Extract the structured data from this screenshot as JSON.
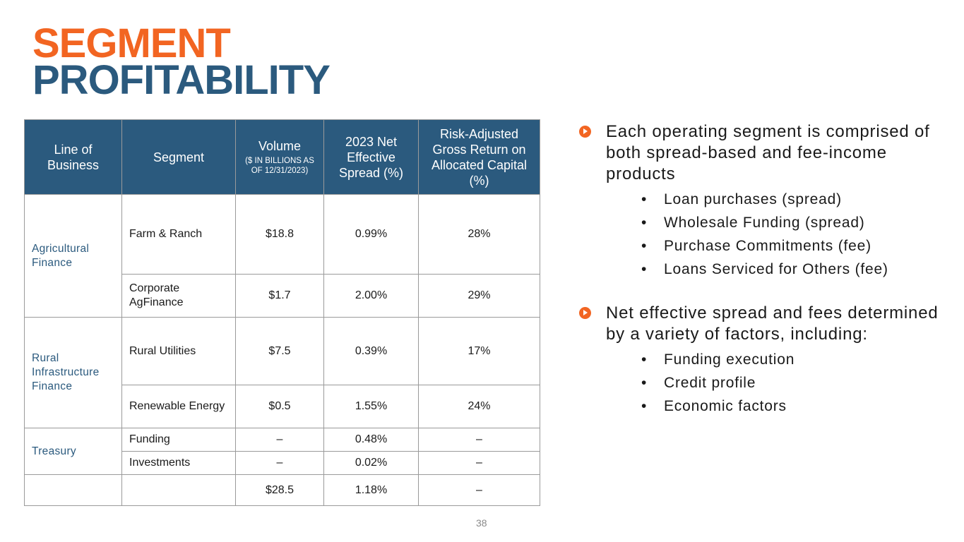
{
  "title": {
    "line1": "SEGMENT",
    "line2": "PROFITABILITY"
  },
  "table": {
    "headers": {
      "line_of_business": "Line of Business",
      "segment": "Segment",
      "volume": "Volume",
      "volume_sub": "($ IN BILLIONS AS OF 12/31/2023)",
      "spread": "2023 Net Effective Spread (%)",
      "return": "Risk-Adjusted Gross Return on Allocated Capital (%)"
    },
    "groups": {
      "agri": "Agricultural Finance",
      "rural": "Rural Infrastructure Finance",
      "treasury": "Treasury"
    },
    "rows": [
      {
        "segment": "Farm & Ranch",
        "volume": "$18.8",
        "spread": "0.99%",
        "return": "28%"
      },
      {
        "segment": "Corporate AgFinance",
        "volume": "$1.7",
        "spread": "2.00%",
        "return": "29%"
      },
      {
        "segment": "Rural Utilities",
        "volume": "$7.5",
        "spread": "0.39%",
        "return": "17%"
      },
      {
        "segment": "Renewable Energy",
        "volume": "$0.5",
        "spread": "1.55%",
        "return": "24%"
      },
      {
        "segment": "Funding",
        "volume": "–",
        "spread": "0.48%",
        "return": "–"
      },
      {
        "segment": "Investments",
        "volume": "–",
        "spread": "0.02%",
        "return": "–"
      }
    ],
    "total": {
      "volume": "$28.5",
      "spread": "1.18%",
      "return": "–"
    }
  },
  "bullets": [
    {
      "text": "Each operating segment is comprised of both spread-based and fee-income products",
      "items": [
        "Loan purchases (spread)",
        "Wholesale Funding (spread)",
        "Purchase Commitments (fee)",
        "Loans Serviced for Others (fee)"
      ]
    },
    {
      "text": "Net effective spread and fees determined by a variety of factors, including:",
      "items": [
        "Funding execution",
        "Credit profile",
        "Economic factors"
      ]
    }
  ],
  "page_number": "38",
  "colors": {
    "orange": "#f26522",
    "navy": "#2b5a7e"
  }
}
